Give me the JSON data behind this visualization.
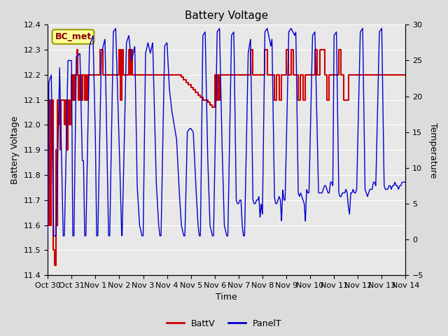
{
  "title": "Battery Voltage",
  "xlabel": "Time",
  "ylabel_left": "Battery Voltage",
  "ylabel_right": "Temperature",
  "annotation_box": "BC_met",
  "ylim_left": [
    11.4,
    12.4
  ],
  "ylim_right": [
    -5,
    30
  ],
  "yticks_left": [
    11.4,
    11.5,
    11.6,
    11.7,
    11.8,
    11.9,
    12.0,
    12.1,
    12.2,
    12.3,
    12.4
  ],
  "yticks_right": [
    -5,
    0,
    5,
    10,
    15,
    20,
    25,
    30
  ],
  "xtick_labels": [
    "Oct 30",
    "Oct 31",
    "Nov 1",
    "Nov 2",
    "Nov 3",
    "Nov 4",
    "Nov 5",
    "Nov 6",
    "Nov 7",
    "Nov 8",
    "Nov 9",
    "Nov 10",
    "Nov 11",
    "Nov 12",
    "Nov 13",
    "Nov 14"
  ],
  "bg_color": "#dcdcdc",
  "plot_bg_color": "#e8e8e8",
  "grid_color": "#ffffff",
  "battv_color": "#cc0000",
  "panelt_color": "#0000cc",
  "legend_battv": "BattV",
  "legend_panelt": "PanelT",
  "figsize": [
    6.4,
    4.8
  ],
  "dpi": 100
}
